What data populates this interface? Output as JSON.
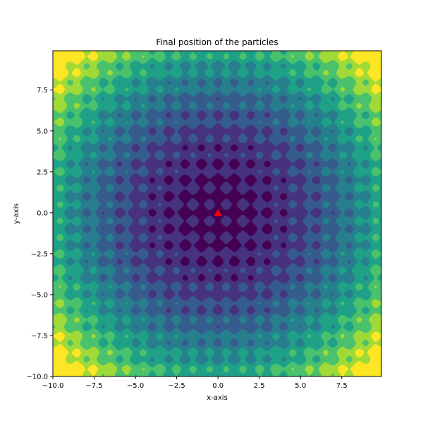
{
  "chart_data": {
    "type": "heatmap",
    "subtype": "filled-contour",
    "title": "Final position of the particles",
    "xlabel": "x-axis",
    "ylabel": "y-axis",
    "xlim": [
      -10.0,
      9.9
    ],
    "ylim": [
      -10.0,
      9.9
    ],
    "x_ticks": [
      -10.0,
      -7.5,
      -5.0,
      -2.5,
      0.0,
      2.5,
      5.0,
      7.5
    ],
    "y_ticks": [
      -10.0,
      -7.5,
      -5.0,
      -2.5,
      0.0,
      2.5,
      5.0,
      7.5
    ],
    "x_tick_labels": [
      "−10.0",
      "−7.5",
      "−5.0",
      "−2.5",
      "0.0",
      "2.5",
      "5.0",
      "7.5"
    ],
    "y_tick_labels": [
      "−10.0",
      "−7.5",
      "−5.0",
      "−2.5",
      "0.0",
      "2.5",
      "5.0",
      "7.5"
    ],
    "function": "rastrigin",
    "levels": [
      0,
      25,
      50,
      75,
      100,
      125,
      150,
      175,
      200
    ],
    "colormap": [
      "#440154",
      "#46327e",
      "#365c8d",
      "#277f8e",
      "#1fa187",
      "#4ac16d",
      "#a0da39",
      "#fde725"
    ],
    "particles": [
      {
        "x": 0.0,
        "y": 0.0,
        "color": "#ff0000",
        "marker": "triangle"
      }
    ],
    "grid": false
  }
}
